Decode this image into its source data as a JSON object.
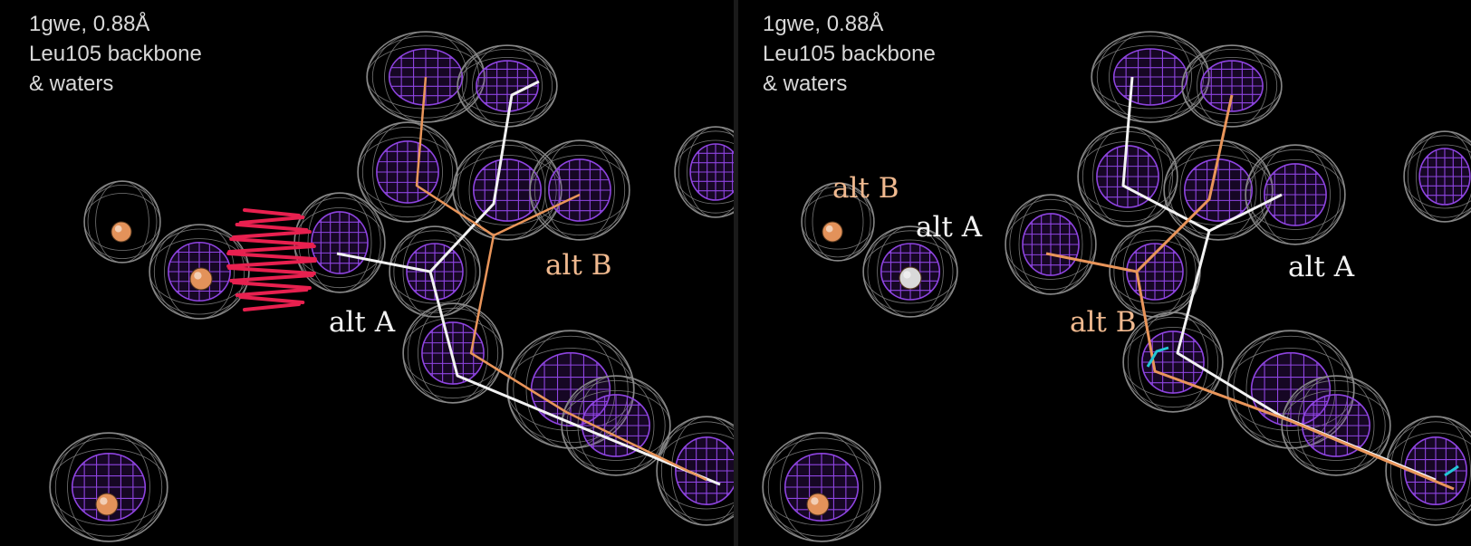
{
  "colors": {
    "background": "#000000",
    "mesh_grey": "#8a8a8a",
    "mesh_purple": "#8e44e0",
    "alt_a_color": "#f2f2f2",
    "alt_b_color": "#e9955a",
    "clash_spikes": "#e8204f",
    "atom_orange": "#e3925a",
    "cyan": "#22c7d6"
  },
  "panels": [
    {
      "caption": [
        "1gwe,  0.88Å",
        "Leu105 backbone",
        "& waters"
      ],
      "labels": {
        "alt_a": "alt A",
        "alt_b": "alt B"
      }
    },
    {
      "caption": [
        "1gwe,  0.88Å",
        "Leu105 backbone",
        "& waters"
      ],
      "labels": {
        "alt_b_water": "alt B",
        "alt_a_water": "alt A",
        "alt_a": "alt A",
        "alt_b": "alt B"
      }
    }
  ]
}
